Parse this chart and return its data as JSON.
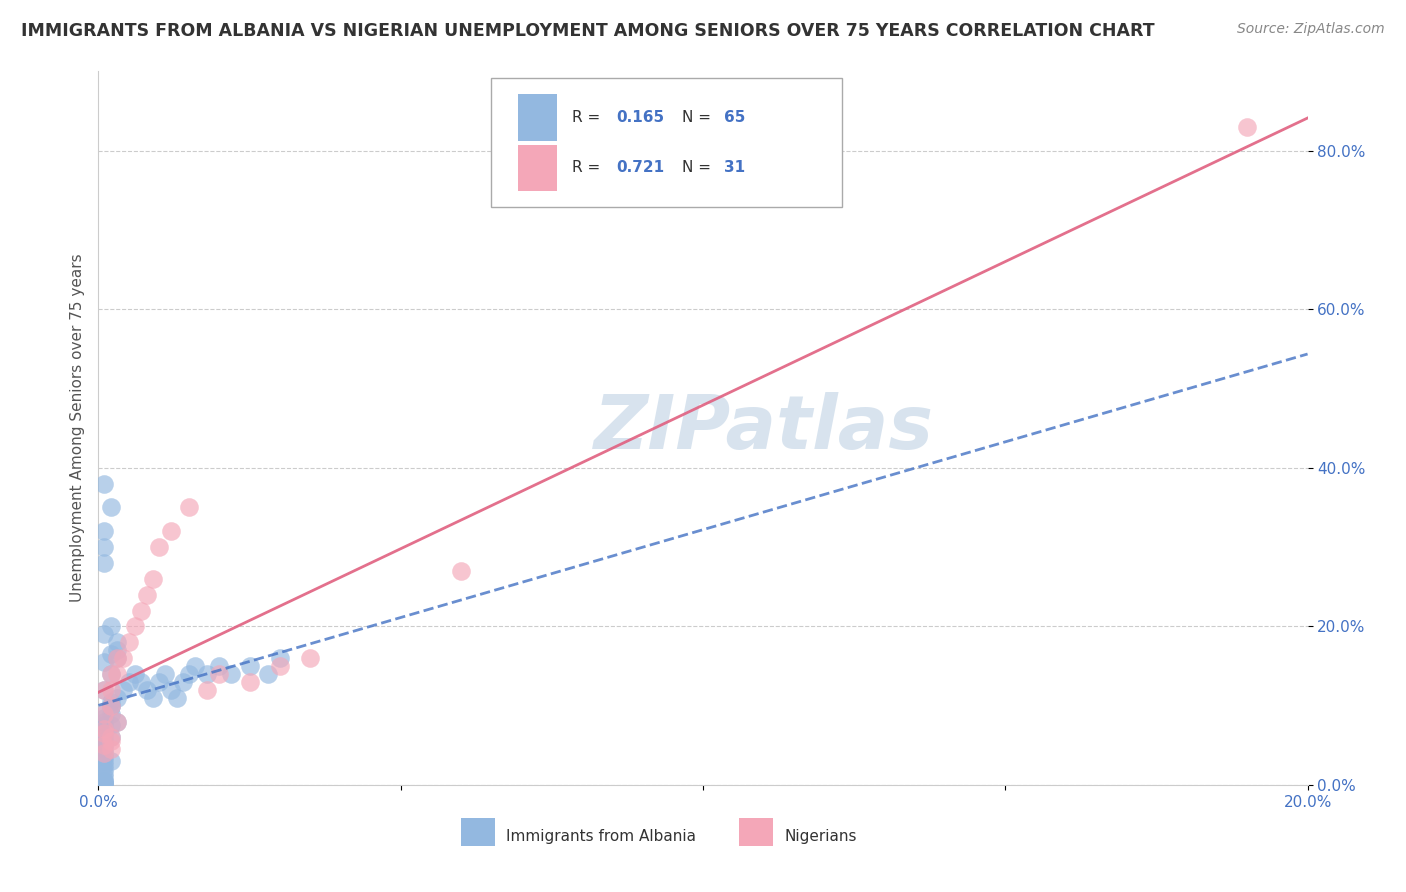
{
  "title": "IMMIGRANTS FROM ALBANIA VS NIGERIAN UNEMPLOYMENT AMONG SENIORS OVER 75 YEARS CORRELATION CHART",
  "source": "Source: ZipAtlas.com",
  "ylabel": "Unemployment Among Seniors over 75 years",
  "xlim": [
    0.0,
    0.2
  ],
  "ylim": [
    0.0,
    0.9
  ],
  "yticks": [
    0.0,
    0.2,
    0.4,
    0.6,
    0.8
  ],
  "ytick_labels": [
    "0.0%",
    "20.0%",
    "40.0%",
    "60.0%",
    "80.0%"
  ],
  "xtick_labels_ends": [
    "0.0%",
    "20.0%"
  ],
  "albania_color": "#93b8e0",
  "nigeria_color": "#f4a7b8",
  "albania_line_color": "#4472c4",
  "nigeria_line_color": "#e06080",
  "albania_R": "0.165",
  "albania_N": "65",
  "nigeria_R": "0.721",
  "nigeria_N": "31",
  "legend_label_albania": "Immigrants from Albania",
  "legend_label_nigeria": "Nigerians",
  "watermark": "ZIPatlas",
  "watermark_color": "#c8d8e8",
  "background_color": "#ffffff",
  "grid_color": "#cccccc",
  "title_color": "#333333",
  "source_color": "#888888",
  "ylabel_color": "#555555",
  "ytick_color": "#4472c4",
  "xtick_color": "#4472c4",
  "albania_x": [
    0.001,
    0.002,
    0.003,
    0.001,
    0.002,
    0.003,
    0.001,
    0.002,
    0.001,
    0.001,
    0.002,
    0.002,
    0.001,
    0.001,
    0.001,
    0.002,
    0.003,
    0.001,
    0.001,
    0.002,
    0.001,
    0.001,
    0.001,
    0.001,
    0.001,
    0.001,
    0.002,
    0.001,
    0.001,
    0.001,
    0.001,
    0.001,
    0.001,
    0.001,
    0.001,
    0.001,
    0.002,
    0.003,
    0.004,
    0.005,
    0.006,
    0.007,
    0.008,
    0.009,
    0.01,
    0.011,
    0.012,
    0.013,
    0.014,
    0.015,
    0.016,
    0.018,
    0.02,
    0.022,
    0.025,
    0.028,
    0.03,
    0.001,
    0.002,
    0.003,
    0.002,
    0.001,
    0.001,
    0.001,
    0.001
  ],
  "albania_y": [
    0.155,
    0.165,
    0.17,
    0.12,
    0.14,
    0.16,
    0.09,
    0.105,
    0.085,
    0.08,
    0.09,
    0.1,
    0.07,
    0.075,
    0.065,
    0.075,
    0.08,
    0.06,
    0.055,
    0.06,
    0.05,
    0.045,
    0.04,
    0.035,
    0.03,
    0.025,
    0.03,
    0.02,
    0.015,
    0.01,
    0.005,
    0.003,
    0.002,
    0.001,
    0.003,
    0.005,
    0.1,
    0.11,
    0.12,
    0.13,
    0.14,
    0.13,
    0.12,
    0.11,
    0.13,
    0.14,
    0.12,
    0.11,
    0.13,
    0.14,
    0.15,
    0.14,
    0.15,
    0.14,
    0.15,
    0.14,
    0.16,
    0.19,
    0.2,
    0.18,
    0.35,
    0.32,
    0.3,
    0.28,
    0.38
  ],
  "nigeria_x": [
    0.001,
    0.002,
    0.003,
    0.001,
    0.002,
    0.003,
    0.001,
    0.002,
    0.001,
    0.001,
    0.002,
    0.002,
    0.001,
    0.002,
    0.003,
    0.004,
    0.005,
    0.006,
    0.007,
    0.008,
    0.009,
    0.01,
    0.012,
    0.015,
    0.018,
    0.02,
    0.025,
    0.03,
    0.035,
    0.06,
    0.19
  ],
  "nigeria_y": [
    0.12,
    0.14,
    0.16,
    0.09,
    0.1,
    0.08,
    0.07,
    0.06,
    0.065,
    0.05,
    0.055,
    0.045,
    0.04,
    0.12,
    0.14,
    0.16,
    0.18,
    0.2,
    0.22,
    0.24,
    0.26,
    0.3,
    0.32,
    0.35,
    0.12,
    0.14,
    0.13,
    0.15,
    0.16,
    0.27,
    0.83
  ],
  "albania_trend": [
    0.05,
    0.15
  ],
  "nigeria_trend_x": [
    0.0,
    0.2
  ],
  "nigeria_trend_y": [
    0.0,
    0.88
  ]
}
